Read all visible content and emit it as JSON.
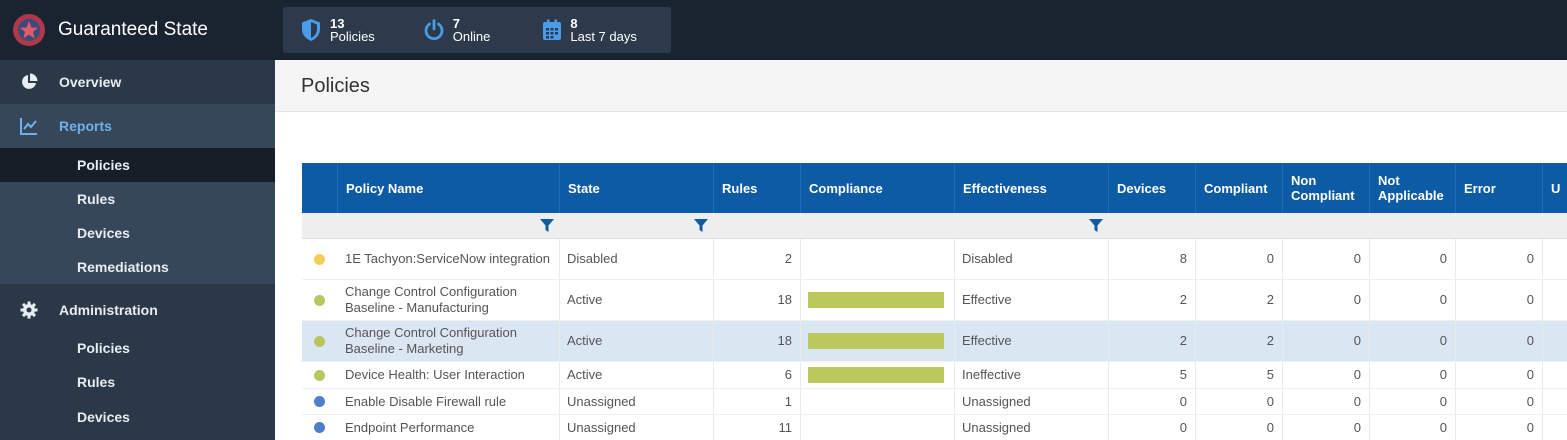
{
  "app": {
    "title": "Guaranteed State"
  },
  "stats": [
    {
      "icon": "shield-icon",
      "value": "13",
      "label": "Policies"
    },
    {
      "icon": "power-icon",
      "value": "7",
      "label": "Online"
    },
    {
      "icon": "calendar-icon",
      "value": "8",
      "label": "Last 7 days"
    }
  ],
  "sidebar": {
    "overview": "Overview",
    "reports": "Reports",
    "reports_items": [
      "Policies",
      "Rules",
      "Devices",
      "Remediations"
    ],
    "administration": "Administration",
    "admin_items": [
      "Policies",
      "Rules",
      "Devices"
    ]
  },
  "page": {
    "title": "Policies"
  },
  "table": {
    "columns": [
      "Policy Name",
      "State",
      "Rules",
      "Compliance",
      "Effectiveness",
      "Devices",
      "Compliant",
      "Non Compliant",
      "Not Applicable",
      "Error",
      "U"
    ],
    "rows": [
      {
        "status_color": "#f4cf57",
        "name": "1E Tachyon:ServiceNow integration",
        "state": "Disabled",
        "rules": "2",
        "compliance": 0,
        "effectiveness": "Disabled",
        "devices": "8",
        "compliant": "0",
        "non_compliant": "0",
        "not_applicable": "0",
        "error": "0"
      },
      {
        "status_color": "#b9c65d",
        "name": "Change Control Configuration Baseline - Manufacturing",
        "state": "Active",
        "rules": "18",
        "compliance": 1,
        "effectiveness": "Effective",
        "devices": "2",
        "compliant": "2",
        "non_compliant": "0",
        "not_applicable": "0",
        "error": "0"
      },
      {
        "status_color": "#b9c65d",
        "name": "Change Control Configuration Baseline - Marketing",
        "state": "Active",
        "rules": "18",
        "compliance": 1,
        "effectiveness": "Effective",
        "devices": "2",
        "compliant": "2",
        "non_compliant": "0",
        "not_applicable": "0",
        "error": "0"
      },
      {
        "status_color": "#b9c65d",
        "name": "Device Health: User Interaction",
        "state": "Active",
        "rules": "6",
        "compliance": 1,
        "effectiveness": "Ineffective",
        "devices": "5",
        "compliant": "5",
        "non_compliant": "0",
        "not_applicable": "0",
        "error": "0"
      },
      {
        "status_color": "#4f7fc9",
        "name": "Enable Disable Firewall rule",
        "state": "Unassigned",
        "rules": "1",
        "compliance": 0,
        "effectiveness": "Unassigned",
        "devices": "0",
        "compliant": "0",
        "non_compliant": "0",
        "not_applicable": "0",
        "error": "0"
      },
      {
        "status_color": "#4f7fc9",
        "name": "Endpoint Performance",
        "state": "Unassigned",
        "rules": "11",
        "compliance": 0,
        "effectiveness": "Unassigned",
        "devices": "0",
        "compliant": "0",
        "non_compliant": "0",
        "not_applicable": "0",
        "error": "0"
      }
    ]
  },
  "colors": {
    "header_blue": "#0d5aa5",
    "compliance_bar": "#bac85c",
    "sidebar_bg": "#2b3847",
    "topbar_bg": "#1a2430"
  }
}
